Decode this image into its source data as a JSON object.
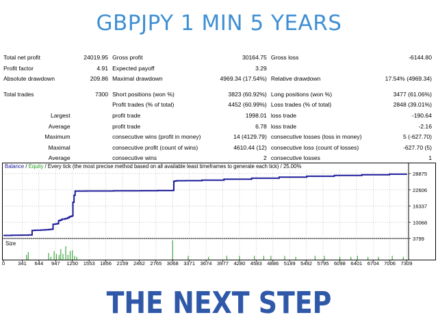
{
  "banner_top": "GBPJPY 1 MIN 5 YEARS",
  "banner_bottom": "THE NEXT STEP",
  "report": {
    "rows": [
      {
        "c1": "Total net profit",
        "c2": "24019.95",
        "c3": "Gross profit",
        "c4": "30164.75",
        "c5": "Gross loss",
        "c6": "-6144.80"
      },
      {
        "c1": "Profit factor",
        "c2": "4.91",
        "c3": "Expected payoff",
        "c4": "3.29",
        "c5": "",
        "c6": ""
      },
      {
        "c1": "Absolute drawdown",
        "c2": "209.86",
        "c3": "Maximal drawdown",
        "c4": "4969.34 (17.54%)",
        "c5": "Relative drawdown",
        "c6": "17.54% (4969.34)"
      },
      {
        "c1": "Total trades",
        "c2": "7300",
        "c3": "Short positions (won %)",
        "c4": "3823 (60.92%)",
        "c5": "Long positions (won %)",
        "c6": "3477 (61.06%)"
      },
      {
        "c1": "",
        "c2": "",
        "c3": "Profit trades (% of total)",
        "c4": "4452 (60.99%)",
        "c5": "Loss trades (% of total)",
        "c6": "2848 (39.01%)"
      },
      {
        "c1": "Largest",
        "c2": "",
        "c3": "profit trade",
        "c4": "1998.01",
        "c5": "loss trade",
        "c6": "-190.64"
      },
      {
        "c1": "Average",
        "c2": "",
        "c3": "profit trade",
        "c4": "6.78",
        "c5": "loss trade",
        "c6": "-2.16"
      },
      {
        "c1": "Maximum",
        "c2": "",
        "c3": "consecutive wins (profit in money)",
        "c4": "14 (4129.79)",
        "c5": "consecutive losses (loss in money)",
        "c6": "5 (-627.70)"
      },
      {
        "c1": "Maximal",
        "c2": "",
        "c3": "consecutive profit (count of wins)",
        "c4": "4610.44 (12)",
        "c5": "consecutive loss (count of losses)",
        "c6": "-627.70 (5)"
      },
      {
        "c1": "Average",
        "c2": "",
        "c3": "consecutive wins",
        "c4": "2",
        "c5": "consecutive losses",
        "c6": "1"
      }
    ]
  },
  "chart": {
    "legend_balance": "Balance",
    "legend_sep1": " / ",
    "legend_equity": "Equity",
    "legend_rest": " / Every tick (the most precise method based on all available least timeframes to generate each tick) / 25.00%",
    "size_label": "Size",
    "colors": {
      "balance": "#1a1a9a",
      "equity": "#1b9b1b",
      "size_bars": "#2ca02c",
      "grid": "#b4b4b4"
    }
  },
  "chart_data": {
    "type": "line",
    "title": "",
    "xlabel": "",
    "ylabel": "",
    "grid": true,
    "ylim": [
      3799,
      28875
    ],
    "yticks": [
      "28875",
      "22606",
      "16337",
      "10068",
      "3799"
    ],
    "xticks": [
      "0",
      "341",
      "644",
      "947",
      "1250",
      "1553",
      "1856",
      "2159",
      "2462",
      "2765",
      "3068",
      "3371",
      "3674",
      "3977",
      "4280",
      "4583",
      "4886",
      "5189",
      "5492",
      "5795",
      "6098",
      "6401",
      "6704",
      "7006",
      "7309"
    ],
    "xlim": [
      0,
      7309
    ],
    "series": [
      {
        "name": "Balance",
        "x": [
          0,
          150,
          300,
          450,
          520,
          560,
          600,
          680,
          720,
          760,
          790,
          830,
          870,
          900,
          940,
          970,
          1000,
          1030,
          1060,
          1120,
          1160,
          1190,
          1210,
          1240,
          1260,
          1280,
          1300,
          1500,
          2000,
          2500,
          2800,
          3060,
          3090,
          3110,
          3140,
          3300,
          3600,
          4000,
          4500,
          5000,
          5500,
          6000,
          6500,
          7000,
          7309
        ],
        "y": [
          5000,
          5050,
          5100,
          5150,
          6900,
          6950,
          7000,
          7050,
          7100,
          7150,
          7200,
          7300,
          7350,
          9300,
          9400,
          9500,
          10700,
          10900,
          11300,
          11500,
          11800,
          12100,
          12300,
          12500,
          17800,
          20500,
          22100,
          22150,
          22200,
          22250,
          22300,
          22350,
          25900,
          26000,
          26100,
          26150,
          26350,
          26700,
          27100,
          27500,
          27850,
          28150,
          28400,
          28650,
          28800
        ]
      },
      {
        "name": "Equity",
        "x": [
          0,
          7309
        ],
        "y": [
          5000,
          28800
        ]
      }
    ],
    "size_bars": [
      {
        "x": 420,
        "y": 0.25
      },
      {
        "x": 450,
        "y": 0.4
      },
      {
        "x": 820,
        "y": 0.35
      },
      {
        "x": 860,
        "y": 0.15
      },
      {
        "x": 920,
        "y": 0.45
      },
      {
        "x": 960,
        "y": 0.3
      },
      {
        "x": 1010,
        "y": 0.25
      },
      {
        "x": 1040,
        "y": 0.55
      },
      {
        "x": 1080,
        "y": 0.3
      },
      {
        "x": 1130,
        "y": 0.7
      },
      {
        "x": 1170,
        "y": 0.25
      },
      {
        "x": 1210,
        "y": 0.45
      },
      {
        "x": 1250,
        "y": 0.5
      },
      {
        "x": 1290,
        "y": 0.2
      },
      {
        "x": 1330,
        "y": 0.15
      },
      {
        "x": 3068,
        "y": 1.0
      },
      {
        "x": 3350,
        "y": 0.2
      },
      {
        "x": 3720,
        "y": 0.15
      },
      {
        "x": 4050,
        "y": 0.2
      },
      {
        "x": 4280,
        "y": 0.2
      },
      {
        "x": 4550,
        "y": 0.2
      },
      {
        "x": 4720,
        "y": 0.2
      },
      {
        "x": 4850,
        "y": 0.2
      },
      {
        "x": 5100,
        "y": 0.2
      },
      {
        "x": 5300,
        "y": 0.15
      },
      {
        "x": 5650,
        "y": 0.2
      },
      {
        "x": 5820,
        "y": 0.2
      },
      {
        "x": 6100,
        "y": 0.15
      },
      {
        "x": 6300,
        "y": 0.15
      },
      {
        "x": 6420,
        "y": 0.2
      },
      {
        "x": 6610,
        "y": 0.15
      },
      {
        "x": 6800,
        "y": 0.15
      },
      {
        "x": 7050,
        "y": 0.2
      },
      {
        "x": 7250,
        "y": 0.15
      }
    ]
  }
}
